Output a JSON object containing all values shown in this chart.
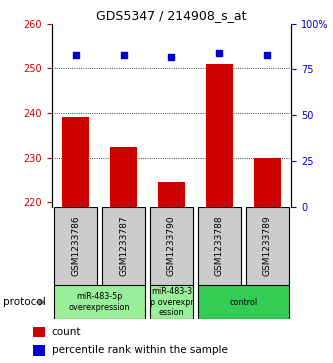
{
  "title": "GDS5347 / 214908_s_at",
  "samples": [
    "GSM1233786",
    "GSM1233787",
    "GSM1233790",
    "GSM1233788",
    "GSM1233789"
  ],
  "bar_values": [
    239.0,
    232.5,
    224.5,
    251.0,
    230.0
  ],
  "percentile_values": [
    83,
    83,
    82,
    84,
    83
  ],
  "ylim_left": [
    219,
    260
  ],
  "ylim_right": [
    0,
    100
  ],
  "yticks_left": [
    220,
    230,
    240,
    250,
    260
  ],
  "yticks_right": [
    0,
    25,
    50,
    75,
    100
  ],
  "ytick_labels_right": [
    "0",
    "25",
    "50",
    "75",
    "100%"
  ],
  "bar_color": "#cc0000",
  "dot_color": "#0000cc",
  "grid_lines": [
    230,
    240,
    250
  ],
  "proto_defs": [
    {
      "start": 0,
      "end": 1,
      "label": "miR-483-5p\noverexpression",
      "color": "#99ee99"
    },
    {
      "start": 2,
      "end": 2,
      "label": "miR-483-3\np overexpr\nession",
      "color": "#99ee99"
    },
    {
      "start": 3,
      "end": 4,
      "label": "control",
      "color": "#33cc55"
    }
  ],
  "protocol_label": "protocol",
  "legend_count_label": "count",
  "legend_percentile_label": "percentile rank within the sample",
  "bar_width": 0.55
}
